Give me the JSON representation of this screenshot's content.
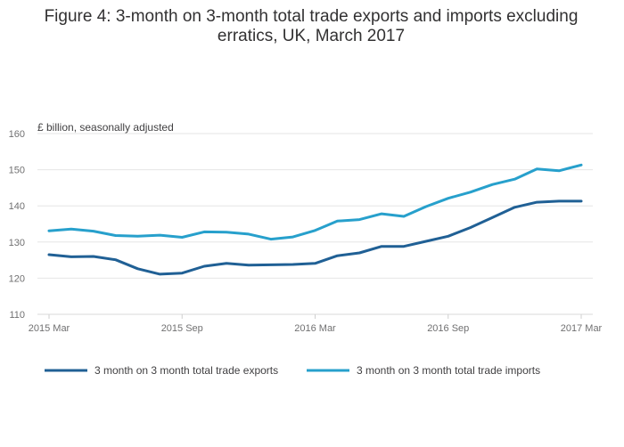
{
  "chart_data": {
    "type": "line",
    "title_line1": "Figure 4: 3-month on 3-month total trade exports and imports excluding",
    "title_line2": "erratics, UK, March 2017",
    "ylabel": "£ billion, seasonally adjusted",
    "xlabel": "",
    "ylim": [
      110,
      160
    ],
    "yticks": [
      110,
      120,
      130,
      140,
      150,
      160
    ],
    "grid": true,
    "legend_position": "bottom",
    "x": [
      "2015 Mar",
      "2015 Apr",
      "2015 May",
      "2015 Jun",
      "2015 Jul",
      "2015 Aug",
      "2015 Sep",
      "2015 Oct",
      "2015 Nov",
      "2015 Dec",
      "2016 Jan",
      "2016 Feb",
      "2016 Mar",
      "2016 Apr",
      "2016 May",
      "2016 Jun",
      "2016 Jul",
      "2016 Aug",
      "2016 Sep",
      "2016 Oct",
      "2016 Nov",
      "2016 Dec",
      "2017 Jan",
      "2017 Feb",
      "2017 Mar"
    ],
    "xticks": [
      {
        "index": 0,
        "label": "2015 Mar"
      },
      {
        "index": 6,
        "label": "2015 Sep"
      },
      {
        "index": 12,
        "label": "2016 Mar"
      },
      {
        "index": 18,
        "label": "2016 Sep"
      },
      {
        "index": 24,
        "label": "2017 Mar"
      }
    ],
    "series": [
      {
        "name": "3 month on 3 month total trade exports",
        "color": "#206095",
        "values": [
          126.5,
          125.9,
          126.0,
          125.1,
          122.6,
          121.1,
          121.4,
          123.3,
          124.1,
          123.6,
          123.7,
          123.8,
          124.1,
          126.2,
          127.0,
          128.8,
          128.8,
          130.2,
          131.6,
          134.0,
          136.8,
          139.6,
          141.0,
          141.3,
          141.3
        ]
      },
      {
        "name": "3 month on 3 month total trade imports",
        "color": "#27a0cc",
        "values": [
          133.1,
          133.6,
          133.0,
          131.8,
          131.6,
          131.9,
          131.3,
          132.8,
          132.7,
          132.2,
          130.8,
          131.4,
          133.2,
          135.8,
          136.2,
          137.8,
          137.1,
          139.8,
          142.1,
          143.8,
          145.9,
          147.4,
          150.2,
          149.7,
          151.3
        ]
      }
    ]
  }
}
